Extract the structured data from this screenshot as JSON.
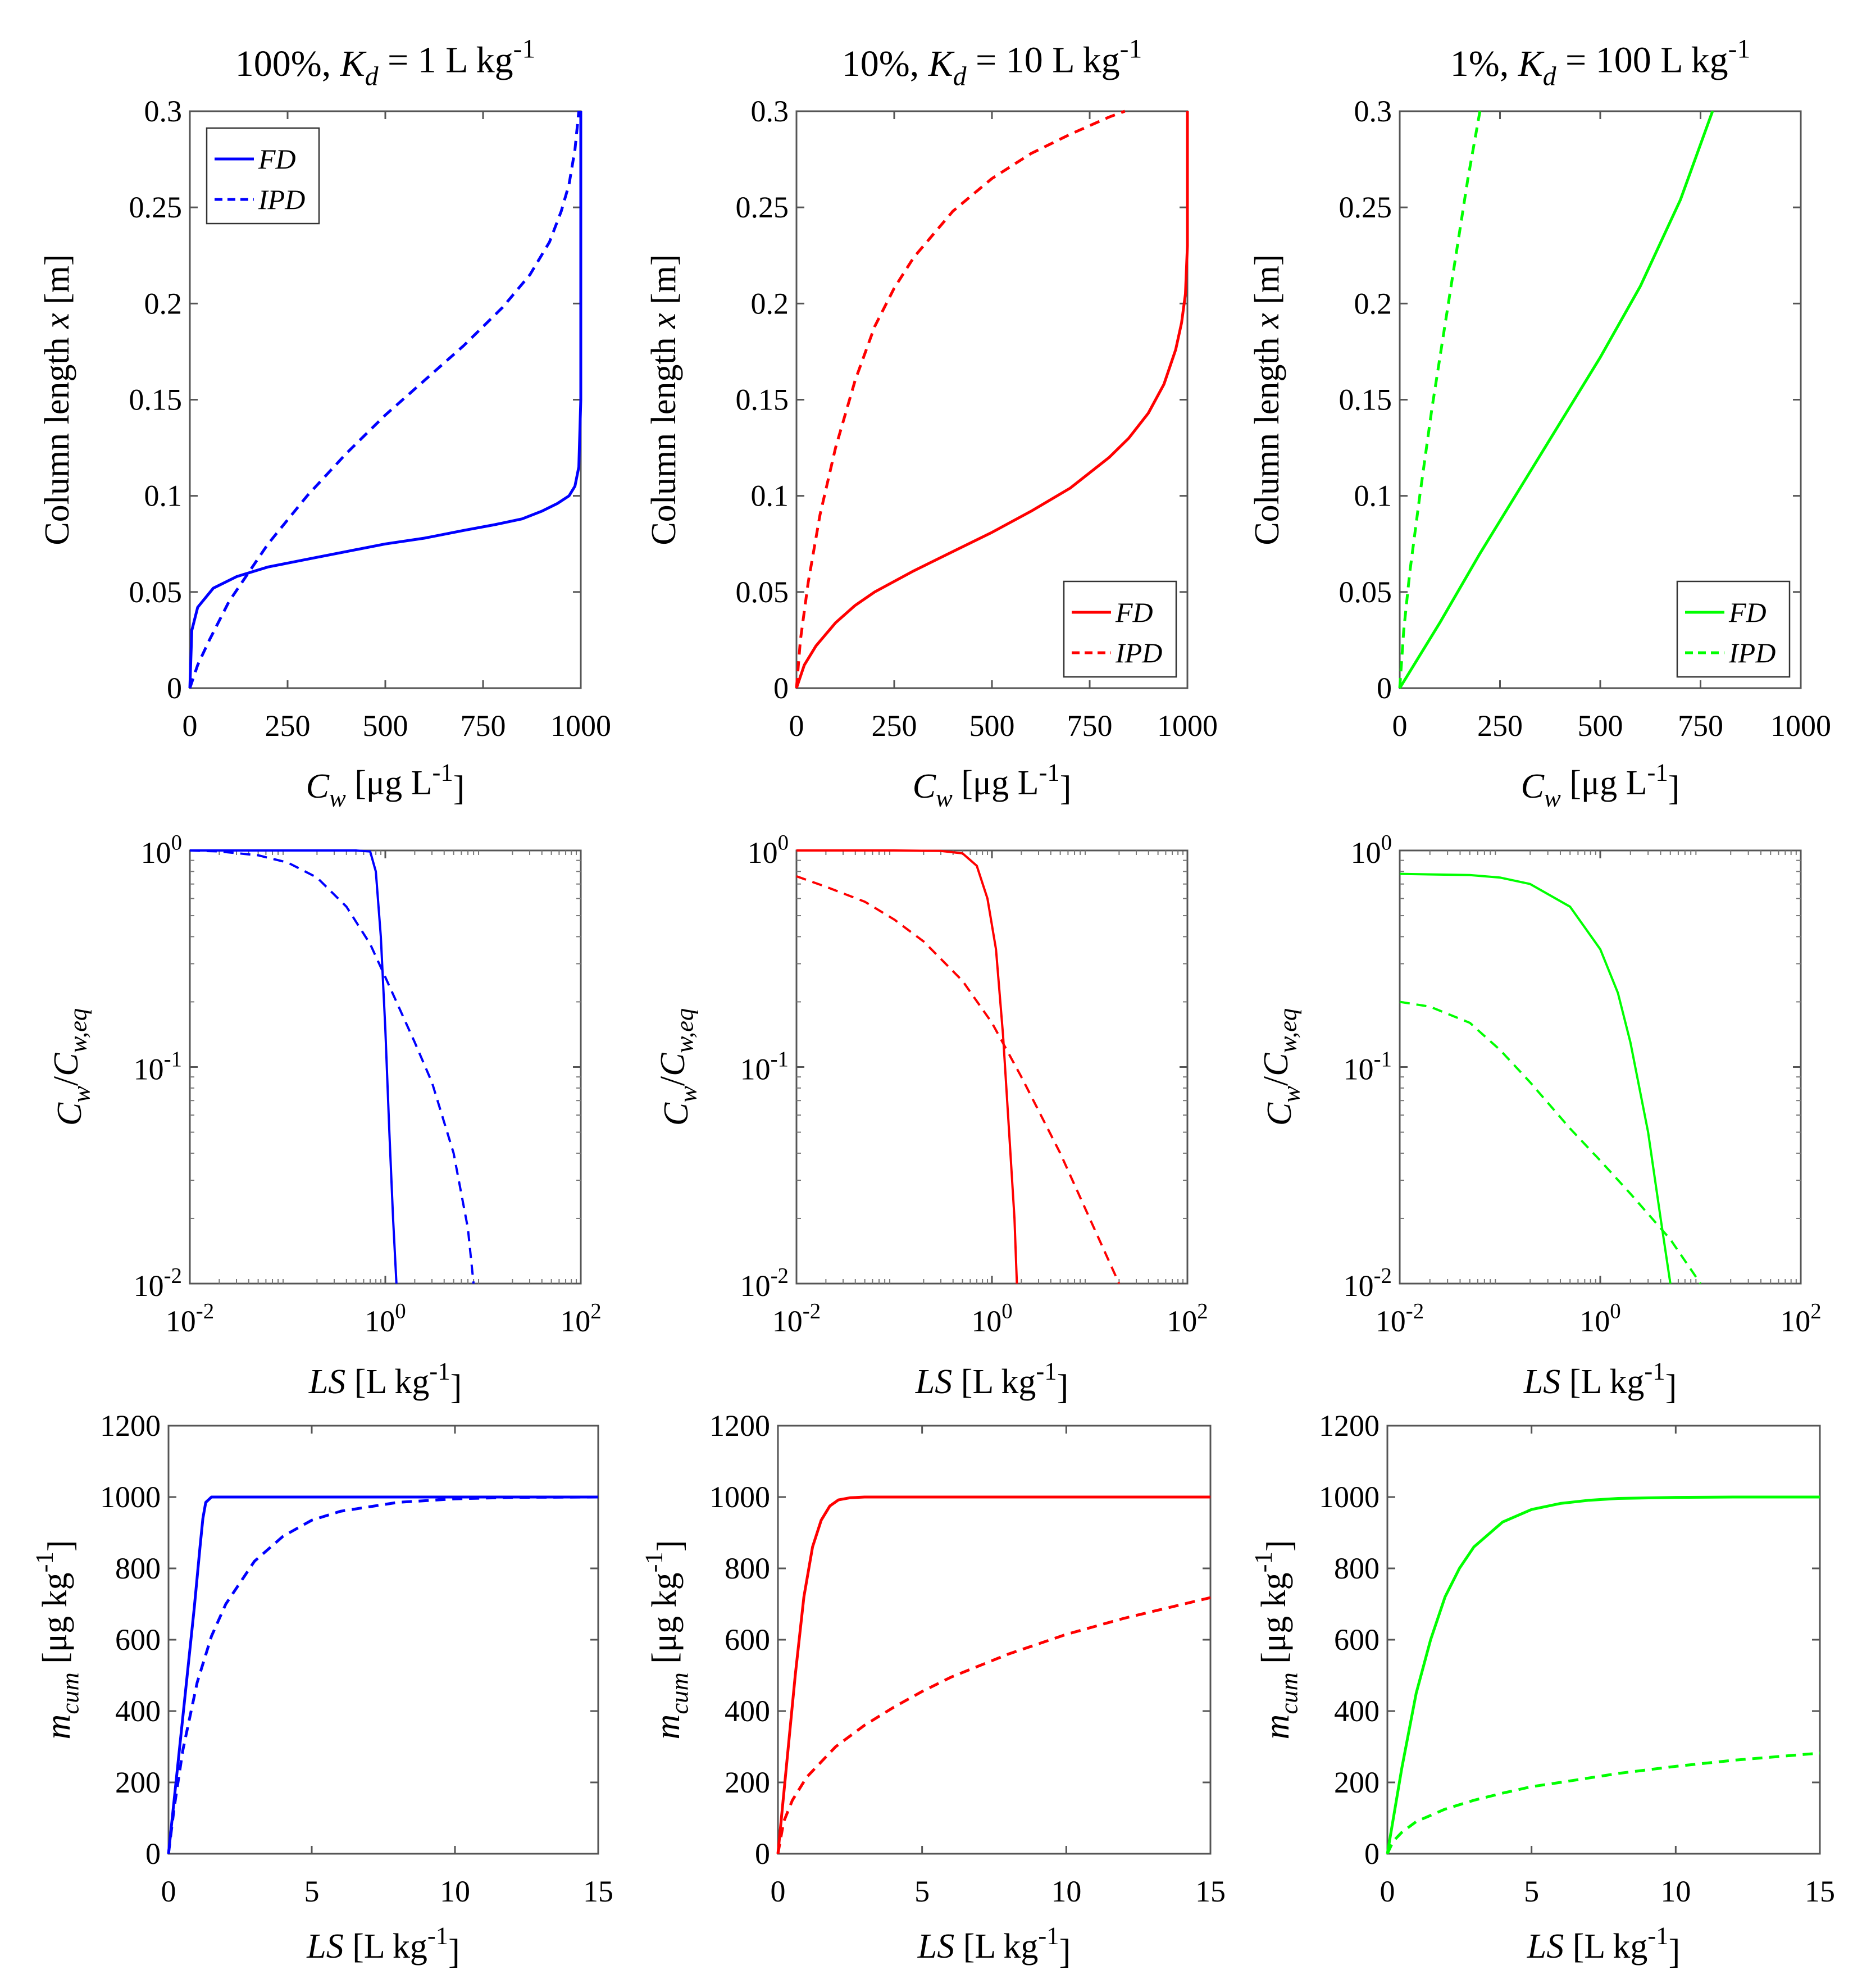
{
  "chart_data": [
    {
      "type": "line",
      "panel": "row1-col1",
      "title": {
        "pre": "100%, ",
        "sym": "K",
        "sub": "d",
        "post": " = 1 L kg",
        "sup": "-1"
      },
      "xlabel": {
        "sym": "C",
        "sub": "w",
        "post": " [μg L",
        "sup": "-1",
        "end": "]"
      },
      "ylabel": {
        "pre": "Column length ",
        "sym": "x",
        "post": " [m]"
      },
      "xlim": [
        0,
        1000
      ],
      "ylim": [
        0,
        0.3
      ],
      "xticks": [
        "0",
        "250",
        "500",
        "750",
        "1000"
      ],
      "yticks": [
        "0",
        "0.05",
        "0.1",
        "0.15",
        "0.2",
        "0.25",
        "0.3"
      ],
      "legend": [
        "FD",
        "IPD"
      ],
      "legend_position": "top-left",
      "color": "#0000ff",
      "series": [
        {
          "name": "FD",
          "style": "solid",
          "x": [
            0,
            5,
            20,
            60,
            120,
            200,
            300,
            400,
            500,
            600,
            700,
            780,
            850,
            900,
            940,
            970,
            985,
            995,
            1000,
            1000
          ],
          "y": [
            0,
            0.03,
            0.042,
            0.052,
            0.058,
            0.063,
            0.067,
            0.071,
            0.075,
            0.078,
            0.082,
            0.085,
            0.088,
            0.092,
            0.096,
            0.1,
            0.105,
            0.115,
            0.15,
            0.3
          ]
        },
        {
          "name": "IPD",
          "style": "dashed",
          "x": [
            0,
            20,
            50,
            100,
            150,
            200,
            300,
            400,
            500,
            600,
            700,
            800,
            870,
            920,
            950,
            970,
            985,
            995
          ],
          "y": [
            0,
            0.012,
            0.025,
            0.045,
            0.06,
            0.075,
            0.1,
            0.122,
            0.142,
            0.16,
            0.178,
            0.198,
            0.215,
            0.232,
            0.248,
            0.262,
            0.28,
            0.3
          ]
        }
      ]
    },
    {
      "type": "line",
      "panel": "row1-col2",
      "title": {
        "pre": "10%, ",
        "sym": "K",
        "sub": "d",
        "post": " = 10 L kg",
        "sup": "-1"
      },
      "xlabel": {
        "sym": "C",
        "sub": "w",
        "post": " [μg L",
        "sup": "-1",
        "end": "]"
      },
      "ylabel": {
        "pre": "Column length ",
        "sym": "x",
        "post": " [m]"
      },
      "xlim": [
        0,
        1000
      ],
      "ylim": [
        0,
        0.3
      ],
      "xticks": [
        "0",
        "250",
        "500",
        "750",
        "1000"
      ],
      "yticks": [
        "0",
        "0.05",
        "0.1",
        "0.15",
        "0.2",
        "0.25",
        "0.3"
      ],
      "legend": [
        "FD",
        "IPD"
      ],
      "legend_position": "bottom-right",
      "color": "#ff0000",
      "series": [
        {
          "name": "FD",
          "style": "solid",
          "x": [
            0,
            20,
            50,
            100,
            150,
            200,
            300,
            400,
            500,
            600,
            700,
            800,
            850,
            900,
            940,
            970,
            985,
            995,
            1000,
            1000
          ],
          "y": [
            0,
            0.012,
            0.022,
            0.034,
            0.043,
            0.05,
            0.061,
            0.071,
            0.081,
            0.092,
            0.104,
            0.12,
            0.13,
            0.143,
            0.158,
            0.176,
            0.19,
            0.205,
            0.23,
            0.3
          ]
        },
        {
          "name": "IPD",
          "style": "dashed",
          "x": [
            0,
            10,
            30,
            60,
            100,
            150,
            200,
            250,
            300,
            400,
            500,
            600,
            700,
            800,
            840
          ],
          "y": [
            0,
            0.025,
            0.055,
            0.09,
            0.125,
            0.16,
            0.188,
            0.208,
            0.224,
            0.248,
            0.265,
            0.278,
            0.288,
            0.297,
            0.3
          ]
        }
      ]
    },
    {
      "type": "line",
      "panel": "row1-col3",
      "title": {
        "pre": "1%, ",
        "sym": "K",
        "sub": "d",
        "post": " = 100 L kg",
        "sup": "-1"
      },
      "xlabel": {
        "sym": "C",
        "sub": "w",
        "post": " [μg L",
        "sup": "-1",
        "end": "]"
      },
      "ylabel": {
        "pre": "Column length ",
        "sym": "x",
        "post": " [m]"
      },
      "xlim": [
        0,
        1000
      ],
      "ylim": [
        0,
        0.3
      ],
      "xticks": [
        "0",
        "250",
        "500",
        "750",
        "1000"
      ],
      "yticks": [
        "0",
        "0.05",
        "0.1",
        "0.15",
        "0.2",
        "0.25",
        "0.3"
      ],
      "legend": [
        "FD",
        "IPD"
      ],
      "legend_position": "bottom-right",
      "color": "#00ff00",
      "series": [
        {
          "name": "FD",
          "style": "solid",
          "x": [
            0,
            100,
            200,
            300,
            400,
            500,
            600,
            700,
            780
          ],
          "y": [
            0,
            0.034,
            0.07,
            0.104,
            0.138,
            0.172,
            0.209,
            0.254,
            0.3
          ]
        },
        {
          "name": "IPD",
          "style": "dashed",
          "x": [
            0,
            10,
            25,
            50,
            80,
            110,
            140,
            170,
            200
          ],
          "y": [
            0,
            0.03,
            0.06,
            0.1,
            0.145,
            0.185,
            0.225,
            0.265,
            0.3
          ]
        }
      ]
    },
    {
      "type": "line",
      "panel": "row2-col1",
      "xscale": "log",
      "yscale": "log",
      "xlabel": {
        "sym": "LS",
        "post": " [L kg",
        "sup": "-1",
        "end": "]"
      },
      "ylabel": {
        "sym": "C",
        "sub": "w",
        "post": "/",
        "sym2": "C",
        "sub2": "w,eq"
      },
      "xlim": [
        0.01,
        100
      ],
      "ylim": [
        0.01,
        1
      ],
      "xticks": [
        {
          "base": "10",
          "exp": "-2"
        },
        {
          "base": "10",
          "exp": "0"
        },
        {
          "base": "10",
          "exp": "2"
        }
      ],
      "yticks": [
        {
          "base": "10",
          "exp": "-2"
        },
        {
          "base": "10",
          "exp": "-1"
        },
        {
          "base": "10",
          "exp": "0"
        }
      ],
      "color": "#0000ff",
      "series": [
        {
          "name": "FD",
          "style": "solid",
          "x": [
            0.01,
            0.1,
            0.5,
            0.7,
            0.8,
            0.9,
            1.0,
            1.1,
            1.2,
            1.3
          ],
          "y": [
            1,
            1,
            1,
            0.99,
            0.8,
            0.4,
            0.15,
            0.05,
            0.02,
            0.01
          ]
        },
        {
          "name": "IPD",
          "style": "dashed",
          "x": [
            0.01,
            0.02,
            0.05,
            0.1,
            0.2,
            0.4,
            0.7,
            1,
            2,
            3,
            5,
            7,
            8
          ],
          "y": [
            1,
            0.99,
            0.95,
            0.88,
            0.75,
            0.55,
            0.37,
            0.26,
            0.13,
            0.085,
            0.04,
            0.018,
            0.01
          ]
        }
      ]
    },
    {
      "type": "line",
      "panel": "row2-col2",
      "xscale": "log",
      "yscale": "log",
      "xlabel": {
        "sym": "LS",
        "post": " [L kg",
        "sup": "-1",
        "end": "]"
      },
      "ylabel": {
        "sym": "C",
        "sub": "w",
        "post": "/",
        "sym2": "C",
        "sub2": "w,eq"
      },
      "xlim": [
        0.01,
        100
      ],
      "ylim": [
        0.01,
        1
      ],
      "xticks": [
        {
          "base": "10",
          "exp": "-2"
        },
        {
          "base": "10",
          "exp": "0"
        },
        {
          "base": "10",
          "exp": "2"
        }
      ],
      "yticks": [
        {
          "base": "10",
          "exp": "-2"
        },
        {
          "base": "10",
          "exp": "-1"
        },
        {
          "base": "10",
          "exp": "0"
        }
      ],
      "color": "#ff0000",
      "series": [
        {
          "name": "FD",
          "style": "solid",
          "x": [
            0.01,
            0.1,
            0.3,
            0.5,
            0.7,
            0.9,
            1.1,
            1.3,
            1.5,
            1.7,
            1.8
          ],
          "y": [
            1,
            1,
            0.995,
            0.97,
            0.85,
            0.6,
            0.35,
            0.14,
            0.05,
            0.02,
            0.01
          ]
        },
        {
          "name": "IPD",
          "style": "dashed",
          "x": [
            0.01,
            0.02,
            0.05,
            0.1,
            0.2,
            0.5,
            1,
            2,
            5,
            10,
            20
          ],
          "y": [
            0.76,
            0.68,
            0.58,
            0.48,
            0.38,
            0.25,
            0.16,
            0.09,
            0.04,
            0.02,
            0.01
          ]
        }
      ]
    },
    {
      "type": "line",
      "panel": "row2-col3",
      "xscale": "log",
      "yscale": "log",
      "xlabel": {
        "sym": "LS",
        "post": " [L kg",
        "sup": "-1",
        "end": "]"
      },
      "ylabel": {
        "sym": "C",
        "sub": "w",
        "post": "/",
        "sym2": "C",
        "sub2": "w,eq"
      },
      "xlim": [
        0.01,
        100
      ],
      "ylim": [
        0.01,
        1
      ],
      "xticks": [
        {
          "base": "10",
          "exp": "-2"
        },
        {
          "base": "10",
          "exp": "0"
        },
        {
          "base": "10",
          "exp": "2"
        }
      ],
      "yticks": [
        {
          "base": "10",
          "exp": "-2"
        },
        {
          "base": "10",
          "exp": "-1"
        },
        {
          "base": "10",
          "exp": "0"
        }
      ],
      "color": "#00ff00",
      "series": [
        {
          "name": "FD",
          "style": "solid",
          "x": [
            0.01,
            0.05,
            0.1,
            0.2,
            0.5,
            1,
            1.5,
            2,
            3,
            4,
            5
          ],
          "y": [
            0.78,
            0.77,
            0.75,
            0.7,
            0.55,
            0.35,
            0.22,
            0.13,
            0.05,
            0.02,
            0.01
          ]
        },
        {
          "name": "IPD",
          "style": "dashed",
          "x": [
            0.01,
            0.02,
            0.05,
            0.1,
            0.2,
            0.5,
            1,
            2,
            5,
            10
          ],
          "y": [
            0.2,
            0.19,
            0.16,
            0.12,
            0.085,
            0.052,
            0.037,
            0.026,
            0.016,
            0.01
          ]
        }
      ]
    },
    {
      "type": "line",
      "panel": "row3-col1",
      "xlabel": {
        "sym": "LS",
        "post": " [L kg",
        "sup": "-1",
        "end": "]"
      },
      "ylabel": {
        "sym": "m",
        "sub": "cum",
        "post": " [μg kg",
        "sup": "-1",
        "end": "]"
      },
      "xlim": [
        0,
        15
      ],
      "ylim": [
        0,
        1200
      ],
      "xticks": [
        "0",
        "5",
        "10",
        "15"
      ],
      "yticks": [
        "0",
        "200",
        "400",
        "600",
        "800",
        "1000",
        "1200"
      ],
      "color": "#0000ff",
      "series": [
        {
          "name": "FD",
          "style": "solid",
          "x": [
            0,
            0.3,
            0.6,
            0.9,
            1.1,
            1.2,
            1.3,
            1.5,
            15
          ],
          "y": [
            0,
            230,
            460,
            690,
            860,
            940,
            985,
            1000,
            1000
          ]
        },
        {
          "name": "IPD",
          "style": "dashed",
          "x": [
            0,
            0.2,
            0.5,
            1,
            1.5,
            2,
            3,
            4,
            5,
            6,
            8,
            10,
            12,
            15
          ],
          "y": [
            0,
            130,
            290,
            480,
            610,
            700,
            820,
            890,
            935,
            960,
            985,
            995,
            999,
            1000
          ]
        }
      ]
    },
    {
      "type": "line",
      "panel": "row3-col2",
      "xlabel": {
        "sym": "LS",
        "post": " [L kg",
        "sup": "-1",
        "end": "]"
      },
      "ylabel": {
        "sym": "m",
        "sub": "cum",
        "post": " [μg kg",
        "sup": "-1",
        "end": "]"
      },
      "xlim": [
        0,
        15
      ],
      "ylim": [
        0,
        1200
      ],
      "xticks": [
        "0",
        "5",
        "10",
        "15"
      ],
      "yticks": [
        "0",
        "200",
        "400",
        "600",
        "800",
        "1000",
        "1200"
      ],
      "color": "#ff0000",
      "series": [
        {
          "name": "FD",
          "style": "solid",
          "x": [
            0,
            0.3,
            0.6,
            0.9,
            1.2,
            1.5,
            1.8,
            2.1,
            2.5,
            3,
            15
          ],
          "y": [
            0,
            250,
            500,
            720,
            860,
            935,
            975,
            992,
            998,
            1000,
            1000
          ]
        },
        {
          "name": "IPD",
          "style": "dashed",
          "x": [
            0,
            0.2,
            0.5,
            1,
            2,
            3,
            4,
            5,
            6,
            8,
            10,
            12,
            15
          ],
          "y": [
            0,
            90,
            150,
            215,
            300,
            360,
            410,
            455,
            495,
            560,
            615,
            660,
            718
          ]
        }
      ]
    },
    {
      "type": "line",
      "panel": "row3-col3",
      "xlabel": {
        "sym": "LS",
        "post": " [L kg",
        "sup": "-1",
        "end": "]"
      },
      "ylabel": {
        "sym": "m",
        "sub": "cum",
        "post": " [μg kg",
        "sup": "-1",
        "end": "]"
      },
      "xlim": [
        0,
        15
      ],
      "ylim": [
        0,
        1200
      ],
      "xticks": [
        "0",
        "5",
        "10",
        "15"
      ],
      "yticks": [
        "0",
        "200",
        "400",
        "600",
        "800",
        "1000",
        "1200"
      ],
      "color": "#00ff00",
      "series": [
        {
          "name": "FD",
          "style": "solid",
          "x": [
            0,
            0.5,
            1,
            1.5,
            2,
            2.5,
            3,
            4,
            5,
            6,
            7,
            8,
            10,
            12,
            15
          ],
          "y": [
            0,
            240,
            450,
            600,
            720,
            800,
            860,
            930,
            965,
            982,
            991,
            996,
            999,
            1000,
            1000
          ]
        },
        {
          "name": "IPD",
          "style": "dashed",
          "x": [
            0,
            0.2,
            0.5,
            1,
            2,
            3,
            4,
            5,
            6,
            8,
            10,
            12,
            15
          ],
          "y": [
            0,
            35,
            60,
            90,
            125,
            150,
            170,
            188,
            200,
            225,
            245,
            262,
            282
          ]
        }
      ]
    }
  ]
}
